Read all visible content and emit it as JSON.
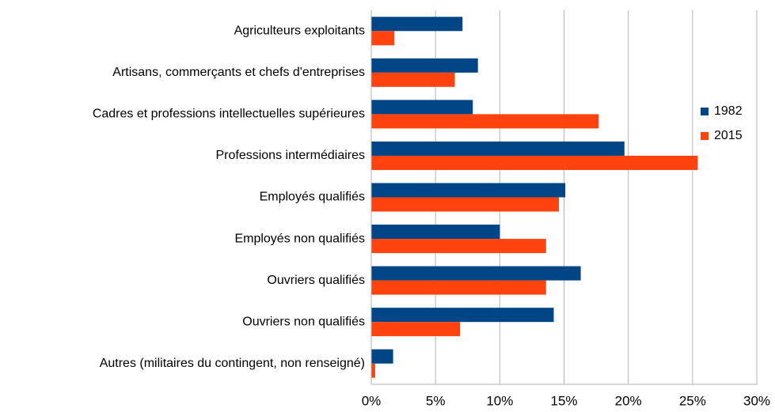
{
  "chart_data": {
    "type": "hbar",
    "categories": [
      "Agriculteurs exploitants",
      "Artisans, commerçants et chefs d'entreprises",
      "Cadres et professions intellectuelles supérieures",
      "Professions intermédiaires",
      "Employés qualifiés",
      "Employés non qualifiés",
      "Ouvriers qualifiés",
      "Ouvriers non qualifiés",
      "Autres (militaires du contingent, non renseigné)"
    ],
    "series": [
      {
        "name": "1982",
        "color": "#004586",
        "values": [
          7.1,
          8.3,
          7.9,
          19.7,
          15.1,
          10.0,
          16.3,
          14.2,
          1.7
        ]
      },
      {
        "name": "2015",
        "color": "#ff420e",
        "values": [
          1.8,
          6.5,
          17.7,
          25.4,
          14.6,
          13.6,
          13.6,
          6.9,
          0.3
        ]
      }
    ],
    "xlim": [
      0,
      30
    ],
    "xticks": [
      {
        "value": 0,
        "label": "0%"
      },
      {
        "value": 5,
        "label": "5%"
      },
      {
        "value": 10,
        "label": "10%"
      },
      {
        "value": 15,
        "label": "15%"
      },
      {
        "value": 20,
        "label": "20%"
      },
      {
        "value": 25,
        "label": "25%"
      },
      {
        "value": 30,
        "label": "30%"
      }
    ],
    "grid": true,
    "legend": "right"
  }
}
